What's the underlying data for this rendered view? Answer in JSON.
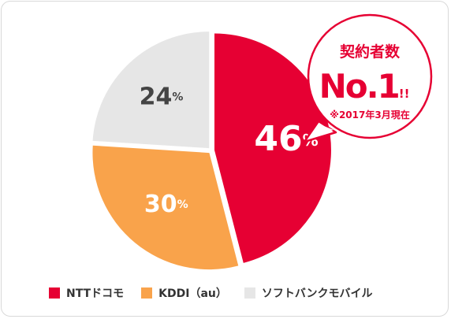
{
  "chart_data": {
    "type": "pie",
    "slices": [
      {
        "label": "NTTドコモ",
        "value": 46,
        "value_text": "46",
        "unit": "%",
        "color": "#e60033",
        "text_color": "#ffffff"
      },
      {
        "label": "KDDI（au）",
        "value": 30,
        "value_text": "30",
        "unit": "%",
        "color": "#f9a34b",
        "text_color": "#ffffff"
      },
      {
        "label": "ソフトバンクモバイル",
        "value": 24,
        "value_text": "24",
        "unit": "%",
        "color": "#e6e6e6",
        "text_color": "#444444"
      }
    ],
    "legend_position": "bottom"
  },
  "badge": {
    "line1": "契約者数",
    "rank": "No.1",
    "marks": "!!",
    "note": "※2017年3月現在",
    "color": "#e60033"
  }
}
